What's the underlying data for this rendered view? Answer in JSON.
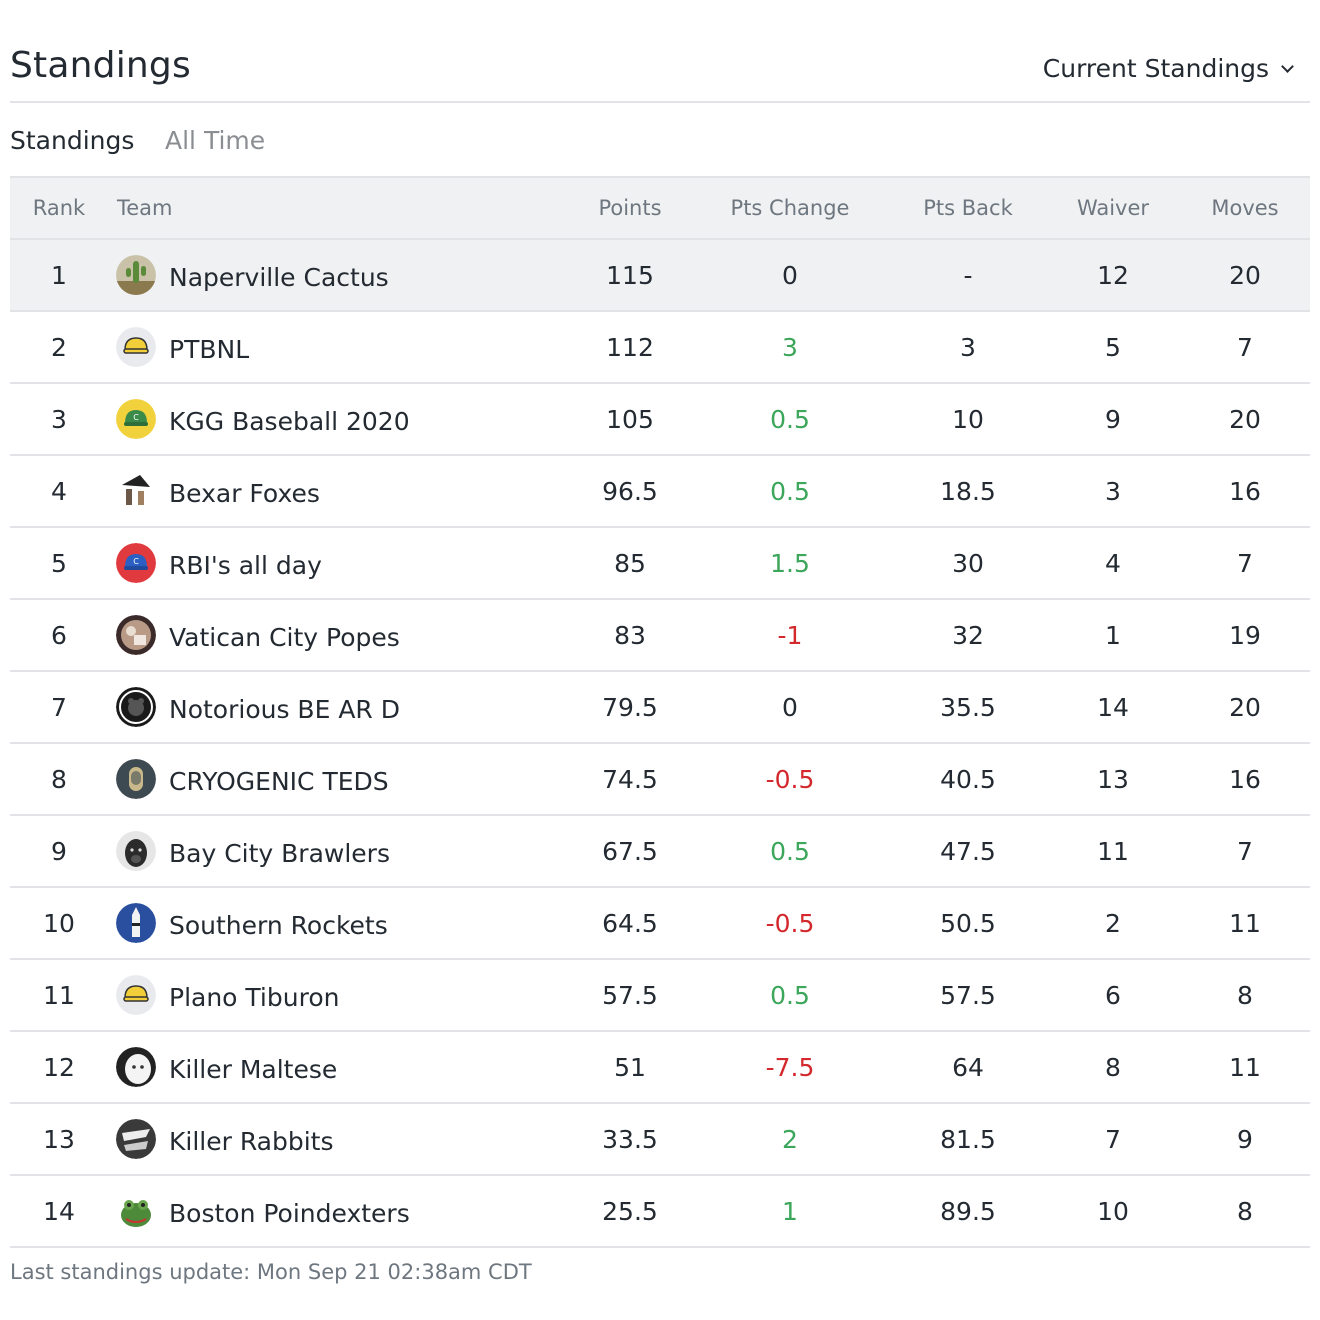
{
  "header": {
    "title": "Standings",
    "view_select": "Current Standings"
  },
  "tabs": [
    {
      "label": "Standings",
      "active": true
    },
    {
      "label": "All Time",
      "active": false
    }
  ],
  "table": {
    "columns": [
      "Rank",
      "Team",
      "Points",
      "Pts Change",
      "Pts Back",
      "Waiver",
      "Moves"
    ],
    "rows": [
      {
        "rank": "1",
        "team": "Naperville Cactus",
        "points": "115",
        "pts_change": "0",
        "change_dir": "neutral",
        "pts_back": "-",
        "waiver": "12",
        "moves": "20",
        "avatar": "cactus-avatar",
        "avatar_color": "#8a7a4e"
      },
      {
        "rank": "2",
        "team": "PTBNL",
        "points": "112",
        "pts_change": "3",
        "change_dir": "up",
        "pts_back": "3",
        "waiver": "5",
        "moves": "7",
        "avatar": "yellow-cap-avatar",
        "avatar_color": "#e8eaee"
      },
      {
        "rank": "3",
        "team": "KGG Baseball 2020",
        "points": "105",
        "pts_change": "0.5",
        "change_dir": "up",
        "pts_back": "10",
        "waiver": "9",
        "moves": "20",
        "avatar": "green-cap-avatar",
        "avatar_color": "#f2d23c"
      },
      {
        "rank": "4",
        "team": "Bexar Foxes",
        "points": "96.5",
        "pts_change": "0.5",
        "change_dir": "up",
        "pts_back": "18.5",
        "waiver": "3",
        "moves": "16",
        "avatar": "fox-avatar",
        "avatar_color": "#6b5848"
      },
      {
        "rank": "5",
        "team": "RBI's all day",
        "points": "85",
        "pts_change": "1.5",
        "change_dir": "up",
        "pts_back": "30",
        "waiver": "4",
        "moves": "7",
        "avatar": "blue-cap-avatar",
        "avatar_color": "#e0393e"
      },
      {
        "rank": "6",
        "team": "Vatican City Popes",
        "points": "83",
        "pts_change": "-1",
        "change_dir": "down",
        "pts_back": "32",
        "waiver": "1",
        "moves": "19",
        "avatar": "pope-avatar",
        "avatar_color": "#b89a86"
      },
      {
        "rank": "7",
        "team": "Notorious BE AR D",
        "points": "79.5",
        "pts_change": "0",
        "change_dir": "neutral",
        "pts_back": "35.5",
        "waiver": "14",
        "moves": "20",
        "avatar": "bear-badge-avatar",
        "avatar_color": "#1a1a1a"
      },
      {
        "rank": "8",
        "team": "CRYOGENIC TEDS",
        "points": "74.5",
        "pts_change": "-0.5",
        "change_dir": "down",
        "pts_back": "40.5",
        "waiver": "13",
        "moves": "16",
        "avatar": "capsule-avatar",
        "avatar_color": "#3e4a52"
      },
      {
        "rank": "9",
        "team": "Bay City Brawlers",
        "points": "67.5",
        "pts_change": "0.5",
        "change_dir": "up",
        "pts_back": "47.5",
        "waiver": "11",
        "moves": "7",
        "avatar": "dog-avatar",
        "avatar_color": "#2b2b2b"
      },
      {
        "rank": "10",
        "team": "Southern Rockets",
        "points": "64.5",
        "pts_change": "-0.5",
        "change_dir": "down",
        "pts_back": "50.5",
        "waiver": "2",
        "moves": "11",
        "avatar": "rocket-avatar",
        "avatar_color": "#2a4f9e"
      },
      {
        "rank": "11",
        "team": "Plano Tiburon",
        "points": "57.5",
        "pts_change": "0.5",
        "change_dir": "up",
        "pts_back": "57.5",
        "waiver": "6",
        "moves": "8",
        "avatar": "yellow-cap-avatar",
        "avatar_color": "#e8eaee"
      },
      {
        "rank": "12",
        "team": "Killer Maltese",
        "points": "51",
        "pts_change": "-7.5",
        "change_dir": "down",
        "pts_back": "64",
        "waiver": "8",
        "moves": "11",
        "avatar": "maltese-avatar",
        "avatar_color": "#222222"
      },
      {
        "rank": "13",
        "team": "Killer Rabbits",
        "points": "33.5",
        "pts_change": "2",
        "change_dir": "up",
        "pts_back": "81.5",
        "waiver": "7",
        "moves": "9",
        "avatar": "rabbit-avatar",
        "avatar_color": "#3a3a3a"
      },
      {
        "rank": "14",
        "team": "Boston Poindexters",
        "points": "25.5",
        "pts_change": "1",
        "change_dir": "up",
        "pts_back": "89.5",
        "waiver": "10",
        "moves": "8",
        "avatar": "frog-avatar",
        "avatar_color": "#4d8a3a"
      }
    ]
  },
  "footer": {
    "last_update": "Last standings update: Mon Sep 21 02:38am CDT"
  },
  "colors": {
    "positive": "#3ca65a",
    "negative": "#d3292c",
    "header_bg": "#f0f1f2",
    "border": "#e2e3e6"
  }
}
